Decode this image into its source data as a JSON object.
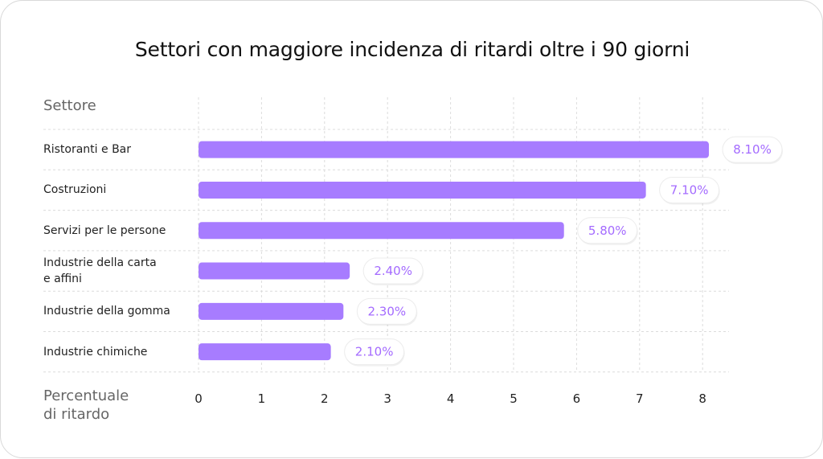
{
  "chart_data": {
    "type": "bar",
    "orientation": "horizontal",
    "title": "Settori con maggiore incidenza di ritardi oltre i 90 giorni",
    "ylabel": "Settore",
    "xlabel": "Percentuale di ritardo",
    "xlabel_lines": [
      "Percentuale",
      "di ritardo"
    ],
    "categories": [
      "Ristoranti e Bar",
      "Costruzioni",
      "Servizi per le persone",
      "Industrie della carta e affini",
      "Industrie della gomma",
      "Industrie chimiche"
    ],
    "category_lines": [
      [
        "Ristoranti e Bar"
      ],
      [
        "Costruzioni"
      ],
      [
        "Servizi per le persone"
      ],
      [
        "Industrie della carta",
        "e affini"
      ],
      [
        "Industrie della gomma"
      ],
      [
        "Industrie chimiche"
      ]
    ],
    "values": [
      8.1,
      7.1,
      5.8,
      2.4,
      2.3,
      2.1
    ],
    "value_labels": [
      "8.10%",
      "7.10%",
      "5.80%",
      "2.40%",
      "2.30%",
      "2.10%"
    ],
    "xticks": [
      "0",
      "1",
      "2",
      "3",
      "4",
      "5",
      "6",
      "7",
      "8"
    ],
    "xlim": [
      0,
      8.5
    ],
    "grid": true,
    "colors": {
      "bar": "#a77cff",
      "label_text": "#a46bff",
      "grid": "#dcdcdc"
    }
  }
}
